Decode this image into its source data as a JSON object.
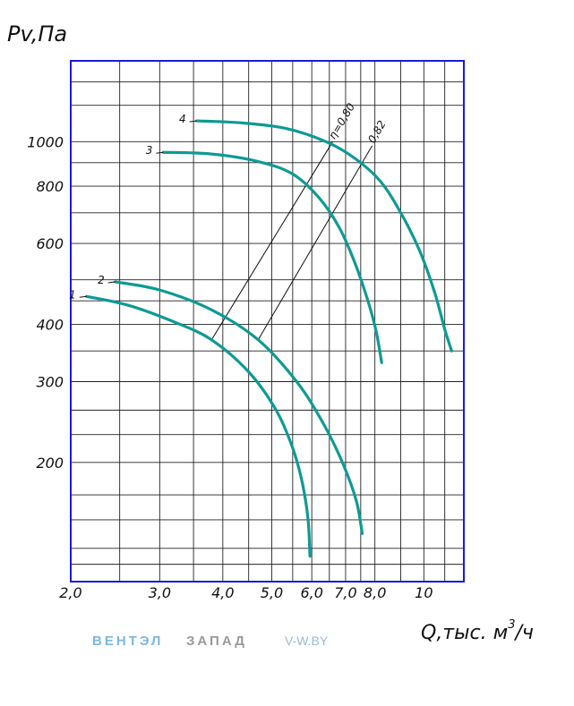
{
  "chart_data": {
    "type": "line",
    "title": "",
    "ylabel": "Pv,Па",
    "xlabel": "Q,тыс. м³/ч",
    "xlabel_main": "Q,тыс. м",
    "xlabel_sup": "3",
    "xlabel_tail": "/ч",
    "x_scale": "log",
    "y_scale": "log",
    "xlim": [
      2.0,
      12.0
    ],
    "ylim": [
      110,
      1500
    ],
    "grid": true,
    "x_ticks": [
      {
        "value": 2.0,
        "label": "2,0"
      },
      {
        "value": 3.0,
        "label": "3,0"
      },
      {
        "value": 4.0,
        "label": "4,0"
      },
      {
        "value": 5.0,
        "label": "5,0"
      },
      {
        "value": 6.0,
        "label": "6,0"
      },
      {
        "value": 7.0,
        "label": "7,0"
      },
      {
        "value": 8.0,
        "label": "8,0"
      },
      {
        "value": 10.0,
        "label": "10"
      }
    ],
    "y_ticks": [
      {
        "value": 200,
        "label": "200"
      },
      {
        "value": 300,
        "label": "300"
      },
      {
        "value": 400,
        "label": "400"
      },
      {
        "value": 600,
        "label": "600"
      },
      {
        "value": 800,
        "label": "800"
      },
      {
        "value": 1000,
        "label": "1000"
      }
    ],
    "series": [
      {
        "name": "1",
        "color": "#0e9a94",
        "points": [
          [
            2.15,
            460
          ],
          [
            2.6,
            440
          ],
          [
            3.2,
            405
          ],
          [
            3.8,
            370
          ],
          [
            4.5,
            315
          ],
          [
            5.1,
            260
          ],
          [
            5.5,
            215
          ],
          [
            5.75,
            180
          ],
          [
            5.9,
            150
          ],
          [
            5.95,
            125
          ]
        ]
      },
      {
        "name": "2",
        "color": "#0e9a94",
        "points": [
          [
            2.45,
            495
          ],
          [
            3.0,
            475
          ],
          [
            3.8,
            430
          ],
          [
            4.7,
            370
          ],
          [
            5.6,
            300
          ],
          [
            6.3,
            245
          ],
          [
            6.9,
            200
          ],
          [
            7.35,
            165
          ],
          [
            7.55,
            140
          ]
        ]
      },
      {
        "name": "3",
        "color": "#0e9a94",
        "points": [
          [
            3.05,
            948
          ],
          [
            3.8,
            940
          ],
          [
            4.7,
            905
          ],
          [
            5.5,
            850
          ],
          [
            6.2,
            755
          ],
          [
            6.8,
            650
          ],
          [
            7.3,
            545
          ],
          [
            7.75,
            450
          ],
          [
            8.05,
            385
          ],
          [
            8.25,
            330
          ]
        ]
      },
      {
        "name": "4",
        "color": "#0e9a94",
        "points": [
          [
            3.55,
            1110
          ],
          [
            4.3,
            1100
          ],
          [
            5.3,
            1070
          ],
          [
            6.4,
            1000
          ],
          [
            7.3,
            920
          ],
          [
            8.2,
            820
          ],
          [
            9.0,
            700
          ],
          [
            9.8,
            580
          ],
          [
            10.5,
            470
          ],
          [
            11.0,
            390
          ],
          [
            11.35,
            350
          ]
        ]
      }
    ],
    "efficiency_lines": [
      {
        "label": "η=0,80",
        "points": [
          [
            3.8,
            370
          ],
          [
            6.6,
            1000
          ]
        ]
      },
      {
        "label": "0,82",
        "points": [
          [
            4.7,
            370
          ],
          [
            7.9,
            980
          ]
        ]
      }
    ]
  },
  "watermark": {
    "brand_a": "ВЕНТЭЛ",
    "brand_b": "ЗАПАД",
    "site": "V-W.BY"
  }
}
